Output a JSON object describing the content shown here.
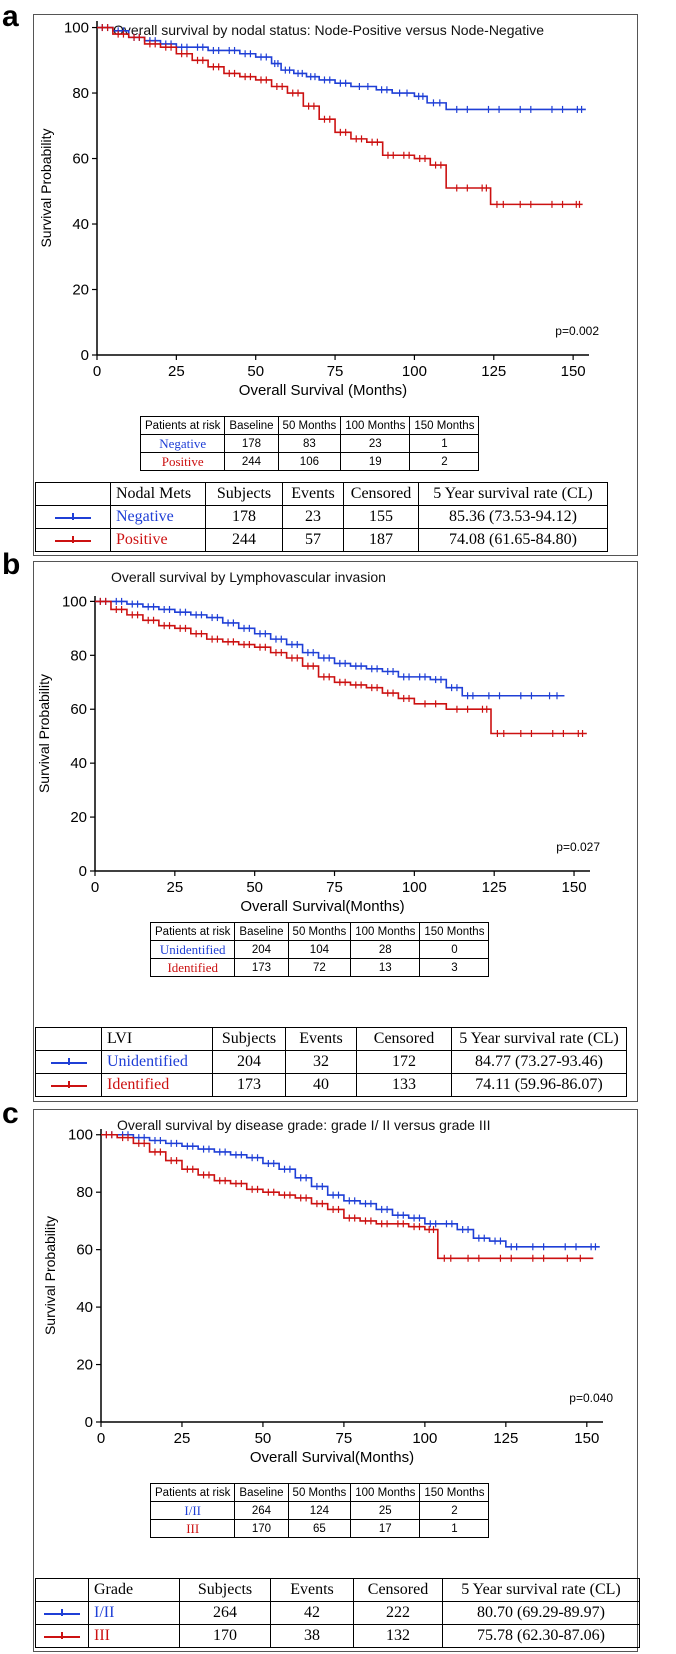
{
  "panels": [
    {
      "letter": "a",
      "chart_data": {
        "type": "line",
        "title": "Overall survival by nodal status: Node-Positive versus Node-Negative",
        "xlabel": "Overall Survival  (Months)",
        "ylabel": "Survival Probability",
        "xlim": [
          0,
          155
        ],
        "ylim": [
          0,
          102
        ],
        "xticks": [
          0,
          25,
          50,
          75,
          100,
          125,
          150
        ],
        "yticks": [
          0,
          20,
          40,
          60,
          80,
          100
        ],
        "pvalue": "p=0.002",
        "series": [
          {
            "name": "Negative",
            "color": "#1f3fd6",
            "x": [
              0,
              5,
              10,
              15,
              20,
              25,
              30,
              35,
              40,
              45,
              50,
              55,
              58,
              62,
              66,
              70,
              75,
              80,
              88,
              93,
              100,
              104,
              110,
              120,
              130,
              140,
              150,
              154
            ],
            "y": [
              100,
              99,
              97,
              96,
              95,
              94,
              94,
              93,
              93,
              92,
              91,
              89,
              87,
              86,
              85,
              84,
              83,
              82,
              81,
              80,
              79,
              77,
              75,
              75,
              75,
              75,
              75,
              75
            ]
          },
          {
            "name": "Positive",
            "color": "#cc1111",
            "x": [
              0,
              5,
              10,
              15,
              20,
              25,
              30,
              35,
              40,
              45,
              50,
              55,
              60,
              65,
              70,
              75,
              80,
              85,
              90,
              95,
              100,
              105,
              110,
              120,
              124,
              130,
              140,
              150,
              153
            ],
            "y": [
              100,
              98,
              97,
              95,
              94,
              92,
              90,
              88,
              86,
              85,
              84,
              82,
              80,
              76,
              72,
              68,
              66,
              65,
              61,
              61,
              60,
              58,
              51,
              51,
              46,
              46,
              46,
              46,
              46
            ]
          }
        ]
      },
      "risk_table": {
        "headers": [
          "Patients at risk",
          "Baseline",
          "50 Months",
          "100 Months",
          "150 Months"
        ],
        "rows": [
          {
            "label": "Negative",
            "values": [
              "178",
              "83",
              "23",
              "1"
            ]
          },
          {
            "label": "Positive",
            "values": [
              "244",
              "106",
              "19",
              "2"
            ]
          }
        ]
      },
      "summary_table": {
        "headers": [
          "Nodal Mets",
          "Subjects",
          "Events",
          "Censored",
          "5 Year survival  rate (CL)"
        ],
        "rows": [
          {
            "label": "Negative",
            "values": [
              "178",
              "23",
              "155",
              "85.36 (73.53-94.12)"
            ]
          },
          {
            "label": "Positive",
            "values": [
              "244",
              "57",
              "187",
              "74.08 (61.65-84.80)"
            ]
          }
        ]
      }
    },
    {
      "letter": "b",
      "chart_data": {
        "type": "line",
        "title": "Overall survival by Lymphovascular invasion",
        "xlabel": "Overall Survival(Months)",
        "ylabel": "Survival Probability",
        "xlim": [
          0,
          155
        ],
        "ylim": [
          0,
          102
        ],
        "xticks": [
          0,
          25,
          50,
          75,
          100,
          125,
          150
        ],
        "yticks": [
          0,
          20,
          40,
          60,
          80,
          100
        ],
        "pvalue": "p=0.027",
        "series": [
          {
            "name": "Unidentified",
            "color": "#1f3fd6",
            "x": [
              0,
              5,
              10,
              15,
              20,
              25,
              30,
              35,
              40,
              45,
              50,
              55,
              60,
              65,
              70,
              75,
              80,
              85,
              90,
              95,
              100,
              105,
              110,
              115,
              120,
              130,
              140,
              147
            ],
            "y": [
              100,
              100,
              99,
              98,
              97,
              96,
              95,
              94,
              92,
              90,
              88,
              86,
              84,
              81,
              79,
              77,
              76,
              75,
              74,
              72,
              72,
              71,
              68,
              65,
              65,
              65,
              65,
              65
            ]
          },
          {
            "name": "Identified",
            "color": "#cc1111",
            "x": [
              0,
              5,
              10,
              15,
              20,
              25,
              30,
              35,
              40,
              45,
              50,
              55,
              60,
              65,
              70,
              75,
              80,
              85,
              90,
              95,
              100,
              110,
              120,
              124,
              130,
              140,
              150,
              154
            ],
            "y": [
              100,
              97,
              95,
              93,
              91,
              90,
              88,
              86,
              85,
              84,
              83,
              81,
              79,
              76,
              72,
              70,
              69,
              68,
              66,
              64,
              62,
              60,
              60,
              51,
              51,
              51,
              51,
              51
            ]
          }
        ]
      },
      "risk_table": {
        "headers": [
          "Patients at risk",
          "Baseline",
          "50 Months",
          "100 Months",
          "150 Months"
        ],
        "rows": [
          {
            "label": "Unidentified",
            "values": [
              "204",
              "104",
              "28",
              "0"
            ]
          },
          {
            "label": "Identified",
            "values": [
              "173",
              "72",
              "13",
              "3"
            ]
          }
        ]
      },
      "summary_table": {
        "headers": [
          "LVI",
          "Subjects",
          "Events",
          "Censored",
          "5 Year survival  rate (CL)"
        ],
        "rows": [
          {
            "label": "Unidentified",
            "values": [
              "204",
              "32",
              "172",
              "84.77 (73.27-93.46)"
            ]
          },
          {
            "label": "Identified",
            "values": [
              "173",
              "40",
              "133",
              "74.11 (59.96-86.07)"
            ]
          }
        ]
      }
    },
    {
      "letter": "c",
      "chart_data": {
        "type": "line",
        "title": "Overall survival by disease grade: grade I/ II versus grade III",
        "xlabel": "Overall Survival(Months)",
        "ylabel": "Survival Probability",
        "xlim": [
          0,
          155
        ],
        "ylim": [
          0,
          102
        ],
        "xticks": [
          0,
          25,
          50,
          75,
          100,
          125,
          150
        ],
        "yticks": [
          0,
          20,
          40,
          60,
          80,
          100
        ],
        "pvalue": "p=0.040",
        "series": [
          {
            "name": "I/II",
            "color": "#1f3fd6",
            "x": [
              0,
              5,
              10,
              15,
              20,
              25,
              30,
              35,
              40,
              45,
              50,
              55,
              60,
              65,
              70,
              75,
              80,
              85,
              90,
              95,
              100,
              105,
              110,
              115,
              120,
              125,
              130,
              140,
              150,
              154
            ],
            "y": [
              100,
              100,
              99,
              98,
              97,
              96,
              95,
              94,
              93,
              92,
              90,
              88,
              85,
              82,
              79,
              77,
              76,
              74,
              72,
              71,
              69,
              69,
              67,
              64,
              63,
              61,
              61,
              61,
              61,
              61
            ]
          },
          {
            "name": "III",
            "color": "#cc1111",
            "x": [
              0,
              5,
              10,
              15,
              20,
              25,
              30,
              35,
              40,
              45,
              50,
              55,
              60,
              65,
              70,
              75,
              80,
              85,
              90,
              95,
              100,
              104,
              110,
              120,
              130,
              140,
              152
            ],
            "y": [
              100,
              99,
              97,
              94,
              91,
              88,
              86,
              84,
              83,
              81,
              80,
              79,
              78,
              76,
              74,
              71,
              70,
              69,
              69,
              68,
              67,
              57,
              57,
              57,
              57,
              57,
              57
            ]
          }
        ]
      },
      "risk_table": {
        "headers": [
          "Patients at risk",
          "Baseline",
          "50 Months",
          "100 Months",
          "150 Months"
        ],
        "rows": [
          {
            "label": "I/II",
            "values": [
              "264",
              "124",
              "25",
              "2"
            ]
          },
          {
            "label": "III",
            "values": [
              "170",
              "65",
              "17",
              "1"
            ]
          }
        ]
      },
      "summary_table": {
        "headers": [
          "Grade",
          "Subjects",
          "Events",
          "Censored",
          "5 Year survival  rate (CL)"
        ],
        "rows": [
          {
            "label": "I/II",
            "values": [
              "264",
              "42",
              "222",
              "80.70 (69.29-89.97)"
            ]
          },
          {
            "label": "III",
            "values": [
              "170",
              "38",
              "132",
              "75.78 (62.30-87.06)"
            ]
          }
        ]
      }
    }
  ]
}
